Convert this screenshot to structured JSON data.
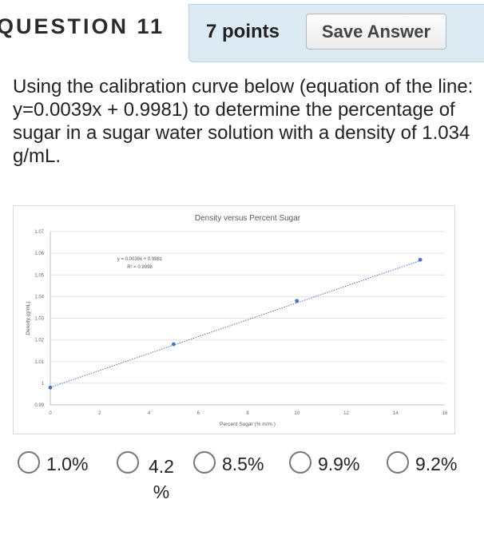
{
  "header": {
    "question_label": "QUESTION 11",
    "points": "7 points",
    "save_label": "Save Answer"
  },
  "question": {
    "text": "Using the calibration curve below (equation of the line: y=0.0039x + 0.9981) to determine the percentage of sugar in a sugar water solution with a density of 1.034 g/mL."
  },
  "chart_data": {
    "type": "scatter",
    "title": "Density versus Percent Sugar",
    "xlabel": "Percent Sugar (% m/m )",
    "ylabel": "Density (g/mL)",
    "xlim": [
      0,
      16
    ],
    "ylim": [
      0.99,
      1.07
    ],
    "x_ticks": [
      "0",
      "2",
      "4",
      "6",
      "8",
      "10",
      "12",
      "14",
      "16"
    ],
    "y_ticks": [
      "0.99",
      "1",
      "1.01",
      "1.02",
      "1.03",
      "1.04",
      "1.05",
      "1.06",
      "1.07"
    ],
    "series": [
      {
        "x": [
          0,
          5,
          10,
          15
        ],
        "y": [
          0.998,
          1.018,
          1.038,
          1.057
        ],
        "color": "#4472c4"
      }
    ],
    "trendline": {
      "equation": "y = 0.0039x + 0.9981",
      "r_squared": "R² = 0.9998",
      "slope": 0.0039,
      "intercept": 0.9981,
      "style": "dotted"
    },
    "grid": true
  },
  "answers": {
    "options": [
      "1.0%",
      "4.2 %",
      "8.5%",
      "9.9%",
      "9.2%"
    ]
  }
}
